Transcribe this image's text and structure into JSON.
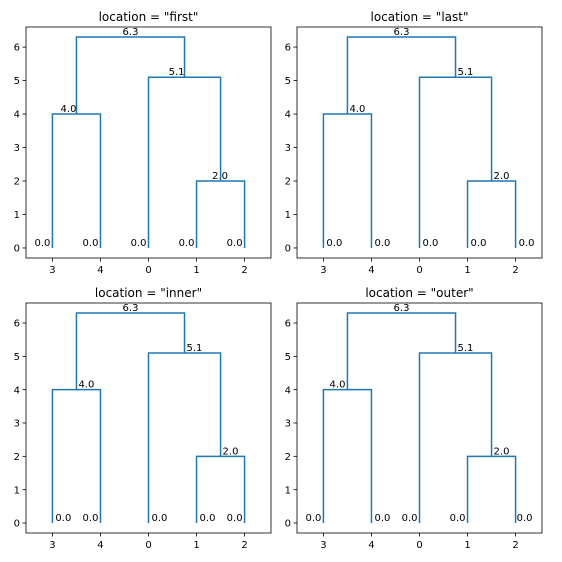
{
  "chart_data": [
    {
      "type": "dendrogram",
      "title": "location = \"first\"",
      "label_location": "first",
      "leaf_order": [
        "3",
        "4",
        "0",
        "1",
        "2"
      ],
      "ylim": [
        -0.3,
        6.6
      ],
      "yticks": [
        0,
        1,
        2,
        3,
        4,
        5,
        6
      ],
      "merges": [
        {
          "left": "1",
          "right": "2",
          "height": 2.0,
          "label": "2.0"
        },
        {
          "left": "3",
          "right": "4",
          "height": 4.0,
          "label": "4.0"
        },
        {
          "left": "0",
          "right": "(1,2)",
          "height": 5.1,
          "label": "5.1"
        },
        {
          "left": "(3,4)",
          "right": "(0,(1,2))",
          "height": 6.3,
          "label": "6.3"
        }
      ],
      "leaf_labels": [
        "0.0",
        "0.0",
        "0.0",
        "0.0",
        "0.0"
      ]
    },
    {
      "type": "dendrogram",
      "title": "location = \"last\"",
      "label_location": "last",
      "leaf_order": [
        "3",
        "4",
        "0",
        "1",
        "2"
      ],
      "ylim": [
        -0.3,
        6.6
      ],
      "yticks": [
        0,
        1,
        2,
        3,
        4,
        5,
        6
      ],
      "merges": [
        {
          "left": "1",
          "right": "2",
          "height": 2.0,
          "label": "2.0"
        },
        {
          "left": "3",
          "right": "4",
          "height": 4.0,
          "label": "4.0"
        },
        {
          "left": "0",
          "right": "(1,2)",
          "height": 5.1,
          "label": "5.1"
        },
        {
          "left": "(3,4)",
          "right": "(0,(1,2))",
          "height": 6.3,
          "label": "6.3"
        }
      ],
      "leaf_labels": [
        "0.0",
        "0.0",
        "0.0",
        "0.0",
        "0.0"
      ]
    },
    {
      "type": "dendrogram",
      "title": "location = \"inner\"",
      "label_location": "inner",
      "leaf_order": [
        "3",
        "4",
        "0",
        "1",
        "2"
      ],
      "ylim": [
        -0.3,
        6.6
      ],
      "yticks": [
        0,
        1,
        2,
        3,
        4,
        5,
        6
      ],
      "merges": [
        {
          "left": "1",
          "right": "2",
          "height": 2.0,
          "label": "2.0"
        },
        {
          "left": "3",
          "right": "4",
          "height": 4.0,
          "label": "4.0"
        },
        {
          "left": "0",
          "right": "(1,2)",
          "height": 5.1,
          "label": "5.1"
        },
        {
          "left": "(3,4)",
          "right": "(0,(1,2))",
          "height": 6.3,
          "label": "6.3"
        }
      ],
      "leaf_labels": [
        "0.0",
        "0.0",
        "0.0",
        "0.0",
        "0.0"
      ]
    },
    {
      "type": "dendrogram",
      "title": "location = \"outer\"",
      "label_location": "outer",
      "leaf_order": [
        "3",
        "4",
        "0",
        "1",
        "2"
      ],
      "ylim": [
        -0.3,
        6.6
      ],
      "yticks": [
        0,
        1,
        2,
        3,
        4,
        5,
        6
      ],
      "merges": [
        {
          "left": "1",
          "right": "2",
          "height": 2.0,
          "label": "2.0"
        },
        {
          "left": "3",
          "right": "4",
          "height": 4.0,
          "label": "4.0"
        },
        {
          "left": "0",
          "right": "(1,2)",
          "height": 5.1,
          "label": "5.1"
        },
        {
          "left": "(3,4)",
          "right": "(0,(1,2))",
          "height": 6.3,
          "label": "6.3"
        }
      ],
      "leaf_labels": [
        "0.0",
        "0.0",
        "0.0",
        "0.0",
        "0.0"
      ]
    }
  ],
  "colors": {
    "line": "#1f77b4",
    "axis": "#000000"
  }
}
